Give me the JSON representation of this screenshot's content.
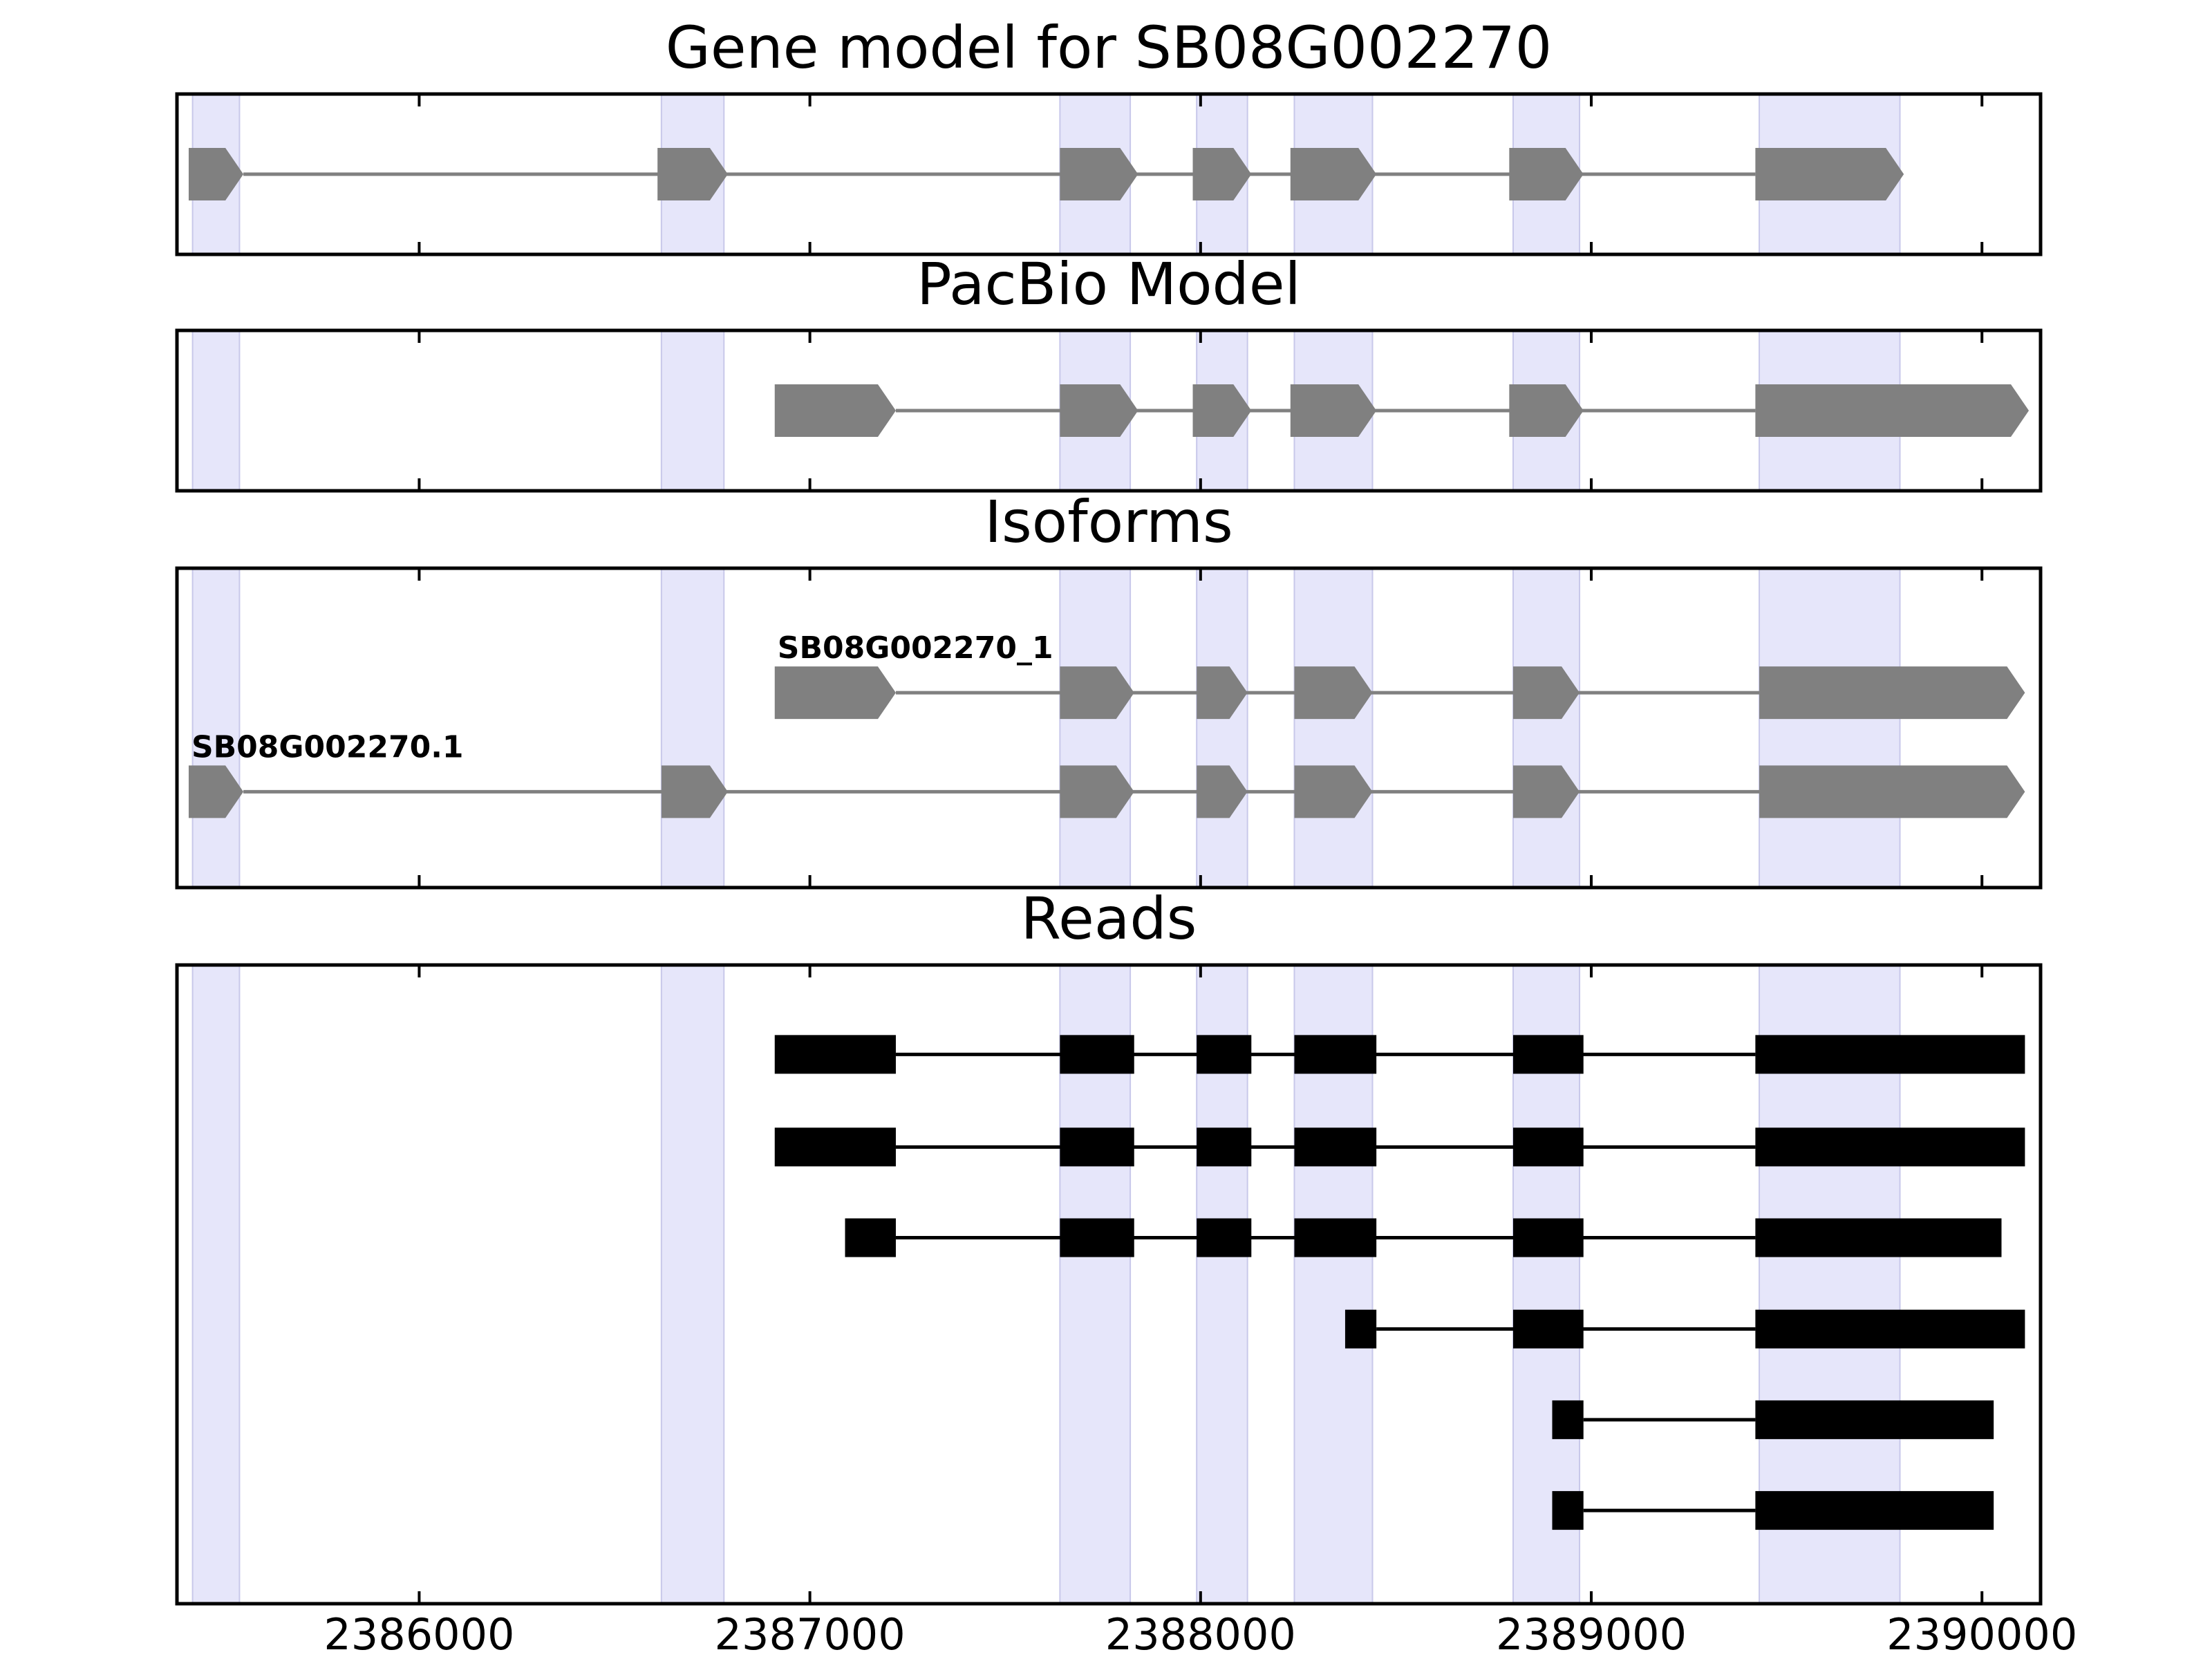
{
  "chart_data": {
    "type": "gene-model",
    "xlim": [
      2385380,
      2390150
    ],
    "xticks": [
      2386000,
      2387000,
      2388000,
      2389000,
      2390000
    ],
    "xtick_labels": [
      "2386000",
      "2387000",
      "2388000",
      "2389000",
      "2390000"
    ],
    "highlight_regions": [
      [
        2385420,
        2385540
      ],
      [
        2386620,
        2386780
      ],
      [
        2387640,
        2387820
      ],
      [
        2387990,
        2388120
      ],
      [
        2388240,
        2388440
      ],
      [
        2388800,
        2388970
      ],
      [
        2389430,
        2389790
      ]
    ],
    "panels": [
      {
        "title": "Gene model for SB08G002270",
        "kind": "model",
        "tracks": [
          {
            "label": "",
            "exons": [
              [
                2385410,
                2385550
              ],
              [
                2386610,
                2386790
              ],
              [
                2387640,
                2387840
              ],
              [
                2387980,
                2388130
              ],
              [
                2388230,
                2388450
              ],
              [
                2388790,
                2388980
              ],
              [
                2389420,
                2389800
              ]
            ]
          }
        ]
      },
      {
        "title": "PacBio Model",
        "kind": "model",
        "tracks": [
          {
            "label": "",
            "exons": [
              [
                2386910,
                2387220
              ],
              [
                2387640,
                2387840
              ],
              [
                2387980,
                2388130
              ],
              [
                2388230,
                2388450
              ],
              [
                2388790,
                2388980
              ],
              [
                2389420,
                2390120
              ]
            ]
          }
        ]
      },
      {
        "title": "Isoforms",
        "kind": "model",
        "tracks": [
          {
            "label": "SB08G002270_1",
            "exons": [
              [
                2386910,
                2387220
              ],
              [
                2387640,
                2387830
              ],
              [
                2387990,
                2388120
              ],
              [
                2388240,
                2388440
              ],
              [
                2388800,
                2388970
              ],
              [
                2389430,
                2390110
              ]
            ]
          },
          {
            "label": "SB08G002270.1",
            "exons": [
              [
                2385410,
                2385550
              ],
              [
                2386620,
                2386790
              ],
              [
                2387640,
                2387830
              ],
              [
                2387990,
                2388120
              ],
              [
                2388240,
                2388440
              ],
              [
                2388800,
                2388970
              ],
              [
                2389430,
                2390110
              ]
            ]
          }
        ]
      },
      {
        "title": "Reads",
        "kind": "reads",
        "tracks": [
          {
            "label": "",
            "exons": [
              [
                2386910,
                2387220
              ],
              [
                2387640,
                2387830
              ],
              [
                2387990,
                2388130
              ],
              [
                2388240,
                2388450
              ],
              [
                2388800,
                2388980
              ],
              [
                2389420,
                2390110
              ]
            ]
          },
          {
            "label": "",
            "exons": [
              [
                2386910,
                2387220
              ],
              [
                2387640,
                2387830
              ],
              [
                2387990,
                2388130
              ],
              [
                2388240,
                2388450
              ],
              [
                2388800,
                2388980
              ],
              [
                2389420,
                2390110
              ]
            ]
          },
          {
            "label": "",
            "exons": [
              [
                2387090,
                2387220
              ],
              [
                2387640,
                2387830
              ],
              [
                2387990,
                2388130
              ],
              [
                2388240,
                2388450
              ],
              [
                2388800,
                2388980
              ],
              [
                2389420,
                2390050
              ]
            ]
          },
          {
            "label": "",
            "exons": [
              [
                2388370,
                2388450
              ],
              [
                2388800,
                2388980
              ],
              [
                2389420,
                2390110
              ]
            ]
          },
          {
            "label": "",
            "exons": [
              [
                2388900,
                2388980
              ],
              [
                2389420,
                2390030
              ]
            ]
          },
          {
            "label": "",
            "exons": [
              [
                2388900,
                2388980
              ],
              [
                2389420,
                2390030
              ]
            ]
          }
        ]
      }
    ]
  }
}
